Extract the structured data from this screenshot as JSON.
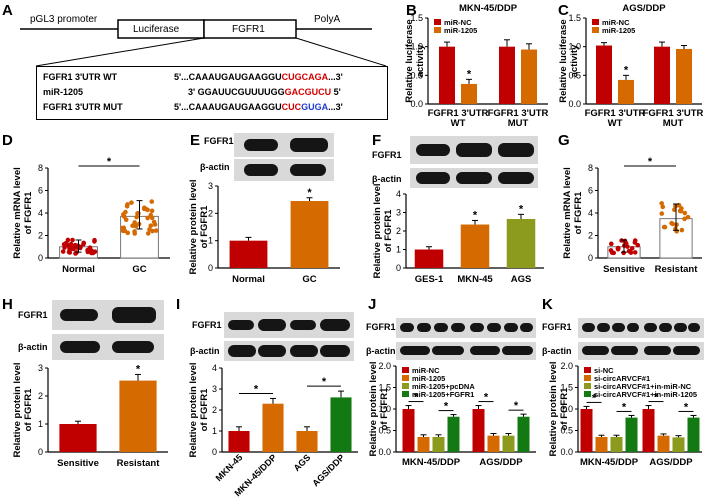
{
  "panel_letters": [
    "A",
    "B",
    "C",
    "D",
    "E",
    "F",
    "G",
    "H",
    "I",
    "J",
    "K"
  ],
  "panelA": {
    "construct": {
      "promoter": "pGL3 promoter",
      "luciferase": "Luciferase",
      "gene": "FGFR1",
      "polya": "PolyA"
    },
    "rows": [
      {
        "name": "FGFR1 3'UTR WT",
        "prefix": "5'...CAAAUGAUGAAGGU",
        "red": "CUGCAGA",
        "blue": "",
        "suffix": "...3'"
      },
      {
        "name": "miR-1205",
        "prefix": "3' GGAUUCGUUUUGG",
        "red": "GACGUCU",
        "blue": "",
        "suffix": " 5'"
      },
      {
        "name": "FGFR1 3'UTR MUT",
        "prefix": "5'...CAAAUGAUGAAGGU",
        "red": "CUC",
        "blue": "GUGA",
        "suffix": "...3'"
      }
    ]
  },
  "colors": {
    "red": "#c00000",
    "orange": "#d46a00",
    "olive": "#8c9a1e",
    "green": "#137a13",
    "grey_blot": "#d9d9d9",
    "band": "#151515"
  },
  "blot_labels": {
    "fgfr1": "FGFR1",
    "actin": "β-actin"
  },
  "chart_data": [
    {
      "panel": "B",
      "type": "bar",
      "title": "MKN-45/DDP",
      "ylabel": "Relative luciferase activity",
      "ylim": [
        0,
        1.5
      ],
      "yticks": [
        "0.0",
        "0.5",
        "1.0",
        "1.5"
      ],
      "categories": [
        "FGFR1 3'UTR WT",
        "FGFR1 3'UTR MUT"
      ],
      "series": [
        {
          "name": "miR-NC",
          "color": "#c00000",
          "values": [
            1.0,
            1.0
          ],
          "errors": [
            0.08,
            0.12
          ]
        },
        {
          "name": "miR-1205",
          "color": "#d46a00",
          "values": [
            0.35,
            0.95
          ],
          "errors": [
            0.08,
            0.1
          ]
        }
      ],
      "annotations": [
        "*"
      ],
      "legend": "top-left"
    },
    {
      "panel": "C",
      "type": "bar",
      "title": "AGS/DDP",
      "ylabel": "Relative luciferase activity",
      "ylim": [
        0,
        1.5
      ],
      "yticks": [
        "0.0",
        "0.5",
        "1.0",
        "1.5"
      ],
      "categories": [
        "FGFR1 3'UTR WT",
        "FGFR1 3'UTR MUT"
      ],
      "series": [
        {
          "name": "miR-NC",
          "color": "#c00000",
          "values": [
            1.02,
            1.0
          ],
          "errors": [
            0.05,
            0.08
          ]
        },
        {
          "name": "miR-1205",
          "color": "#d46a00",
          "values": [
            0.42,
            0.96
          ],
          "errors": [
            0.08,
            0.06
          ]
        }
      ],
      "annotations": [
        "*"
      ],
      "legend": "top-left"
    },
    {
      "panel": "D",
      "type": "scatter",
      "ylabel": "Relative mRNA level of FGFR1",
      "ylim": [
        0,
        8
      ],
      "yticks": [
        "0",
        "2",
        "4",
        "6",
        "8"
      ],
      "categories": [
        "Normal",
        "GC"
      ],
      "bar_colors": [
        "#c00000",
        "#d46a00"
      ],
      "means": [
        1.0,
        3.7
      ],
      "errors": [
        0.6,
        1.4
      ],
      "annotations": [
        "*"
      ]
    },
    {
      "panel": "E",
      "type": "bar",
      "ylabel": "Relative protein level of FGFR1",
      "ylim": [
        0,
        3
      ],
      "yticks": [
        "0",
        "1",
        "2",
        "3"
      ],
      "categories": [
        "Normal",
        "GC"
      ],
      "colors": [
        "#c00000",
        "#d46a00"
      ],
      "values": [
        1.0,
        2.45
      ],
      "errors": [
        0.12,
        0.12
      ],
      "annotations": [
        "*"
      ]
    },
    {
      "panel": "F",
      "type": "bar",
      "ylabel": "Relative protein level of FGFR1",
      "ylim": [
        0,
        4
      ],
      "yticks": [
        "0",
        "1",
        "2",
        "3",
        "4"
      ],
      "categories": [
        "GES-1",
        "MKN-45",
        "AGS"
      ],
      "colors": [
        "#c00000",
        "#d46a00",
        "#8c9a1e"
      ],
      "values": [
        1.0,
        2.35,
        2.65
      ],
      "errors": [
        0.15,
        0.22,
        0.25
      ],
      "annotations": [
        "*",
        "*"
      ]
    },
    {
      "panel": "G",
      "type": "scatter",
      "ylabel": "Relative mRNA level of FGFR1",
      "ylim": [
        0,
        8
      ],
      "yticks": [
        "0",
        "2",
        "4",
        "6",
        "8"
      ],
      "categories": [
        "Sensitive",
        "Resistant"
      ],
      "bar_colors": [
        "#c00000",
        "#d46a00"
      ],
      "means": [
        1.0,
        3.5
      ],
      "errors": [
        0.6,
        1.3
      ],
      "annotations": [
        "*"
      ]
    },
    {
      "panel": "H",
      "type": "bar",
      "ylabel": "Relative protein level of FGFR1",
      "ylim": [
        0,
        3
      ],
      "yticks": [
        "0",
        "1",
        "2",
        "3"
      ],
      "categories": [
        "Sensitive",
        "Resistant"
      ],
      "colors": [
        "#c00000",
        "#d46a00"
      ],
      "values": [
        1.0,
        2.55
      ],
      "errors": [
        0.1,
        0.22
      ],
      "annotations": [
        "*"
      ]
    },
    {
      "panel": "I",
      "type": "bar",
      "ylabel": "Relative protein level of FGFR1",
      "ylim": [
        0,
        4
      ],
      "yticks": [
        "0",
        "1",
        "2",
        "3",
        "4"
      ],
      "categories": [
        "MKN-45",
        "MKN-45/DDP",
        "AGS",
        "AGS/DDP"
      ],
      "colors": [
        "#c00000",
        "#d46a00",
        "#d46a00",
        "#137a13"
      ],
      "values": [
        1.0,
        2.3,
        1.0,
        2.6
      ],
      "errors": [
        0.2,
        0.25,
        0.2,
        0.3
      ],
      "annotations": [
        "*",
        "*"
      ]
    },
    {
      "panel": "J",
      "type": "bar",
      "ylabel": "Relative protein level of FGFR1",
      "ylim": [
        0,
        2.0
      ],
      "yticks": [
        "0.0",
        "0.5",
        "1.0",
        "1.5",
        "2.0"
      ],
      "categories": [
        "MKN-45/DDP",
        "AGS/DDP"
      ],
      "series": [
        {
          "name": "miR-NC",
          "color": "#c00000",
          "values": [
            1.0,
            1.0
          ],
          "errors": [
            0.08,
            0.08
          ]
        },
        {
          "name": "miR-1205",
          "color": "#d46a00",
          "values": [
            0.35,
            0.38
          ],
          "errors": [
            0.05,
            0.05
          ]
        },
        {
          "name": "miR-1205+pcDNA",
          "color": "#8c9a1e",
          "values": [
            0.35,
            0.38
          ],
          "errors": [
            0.05,
            0.05
          ]
        },
        {
          "name": "miR-1205+FGFR1",
          "color": "#137a13",
          "values": [
            0.82,
            0.82
          ],
          "errors": [
            0.05,
            0.06
          ]
        }
      ],
      "annotations": [
        "*",
        "*",
        "*",
        "*"
      ],
      "legend": "top-left"
    },
    {
      "panel": "K",
      "type": "bar",
      "ylabel": "Relative protein level of FGFR1",
      "ylim": [
        0,
        2.0
      ],
      "yticks": [
        "0.0",
        "0.5",
        "1.0",
        "1.5",
        "2.0"
      ],
      "categories": [
        "MKN-45/DDP",
        "AGS/DDP"
      ],
      "series": [
        {
          "name": "si-NC",
          "color": "#c00000",
          "values": [
            1.0,
            1.0
          ],
          "errors": [
            0.06,
            0.08
          ]
        },
        {
          "name": "si-circARVCF#1",
          "color": "#d46a00",
          "values": [
            0.35,
            0.38
          ],
          "errors": [
            0.04,
            0.04
          ]
        },
        {
          "name": "si-circARVCF#1+in-miR-NC",
          "color": "#8c9a1e",
          "values": [
            0.35,
            0.34
          ],
          "errors": [
            0.04,
            0.04
          ]
        },
        {
          "name": "si-circARVCF#1+in-miR-1205",
          "color": "#137a13",
          "values": [
            0.8,
            0.8
          ],
          "errors": [
            0.05,
            0.05
          ]
        }
      ],
      "annotations": [
        "*",
        "*",
        "*",
        "*"
      ],
      "legend": "top-left"
    }
  ]
}
